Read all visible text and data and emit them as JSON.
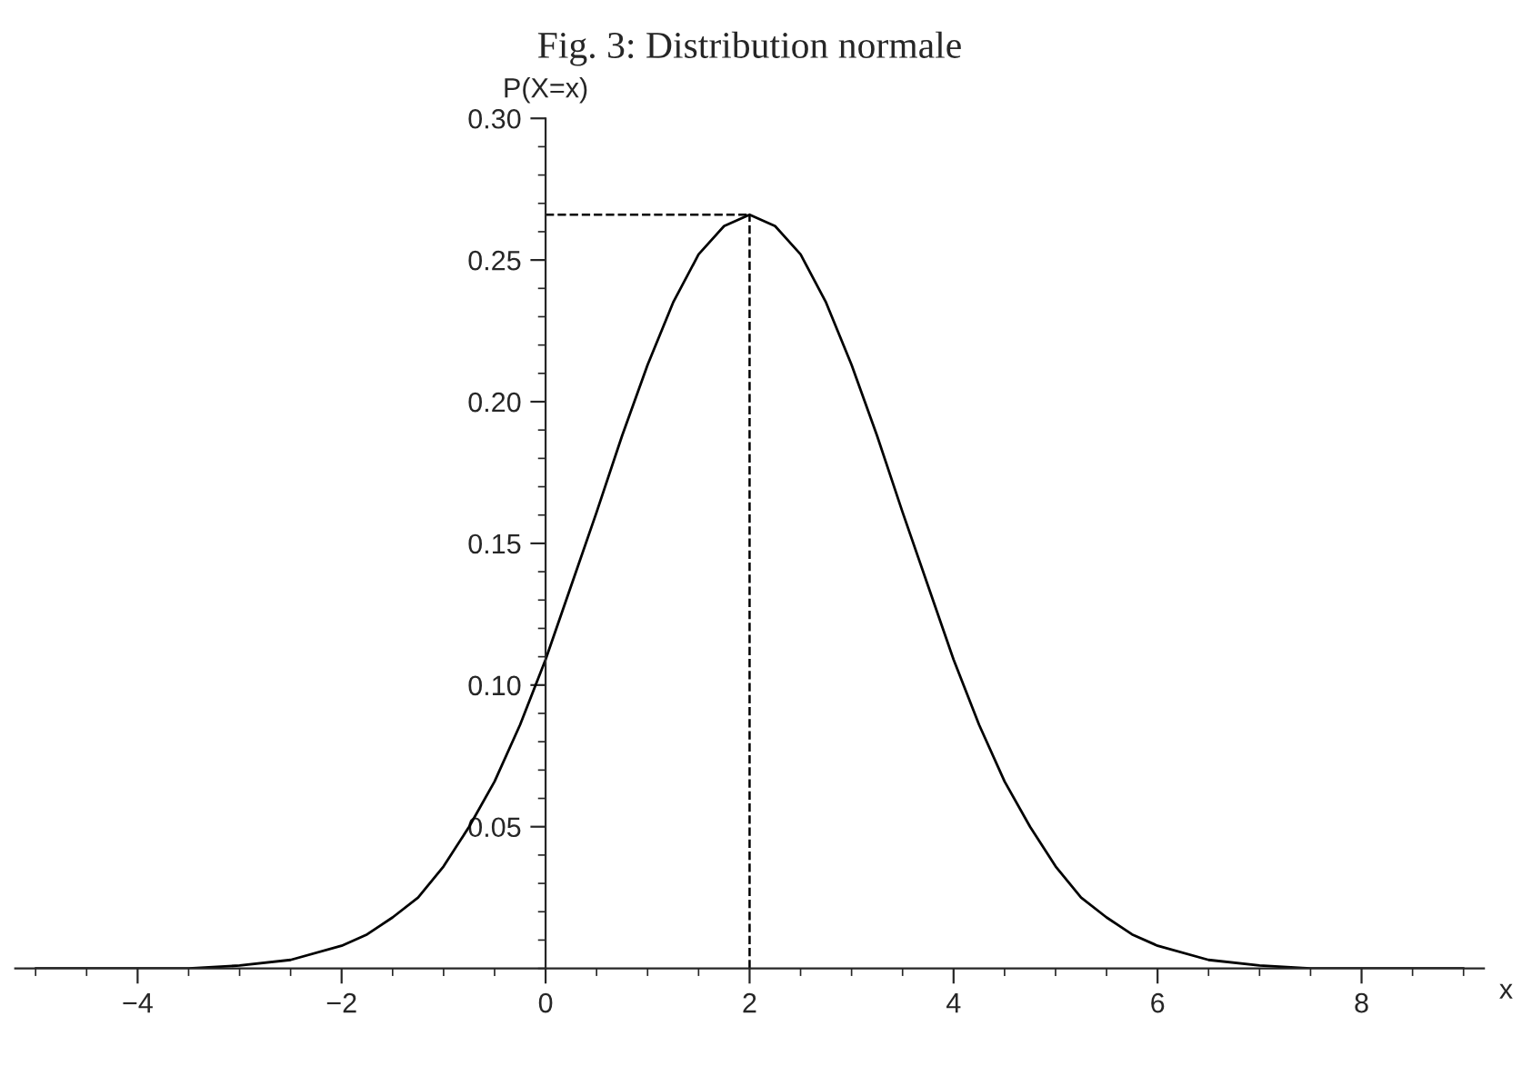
{
  "chart_data": {
    "type": "line",
    "title": "Fig. 3: Distribution normale",
    "xlabel": "x",
    "ylabel": "P(X=x)",
    "x": [
      -5,
      -4.5,
      -4,
      -3.5,
      -3,
      -2.5,
      -2,
      -1.75,
      -1.5,
      -1.25,
      -1,
      -0.75,
      -0.5,
      -0.25,
      0,
      0.25,
      0.5,
      0.75,
      1,
      1.25,
      1.5,
      1.75,
      2,
      2.25,
      2.5,
      2.75,
      3,
      3.25,
      3.5,
      3.75,
      4,
      4.25,
      4.5,
      4.75,
      5,
      5.25,
      5.5,
      5.75,
      6,
      6.5,
      7,
      7.5,
      8,
      8.5,
      9
    ],
    "series": [
      {
        "color": "#000000",
        "values": [
          0.0,
          0.0,
          0.0,
          0.0,
          0.001,
          0.003,
          0.008,
          0.012,
          0.018,
          0.025,
          0.036,
          0.05,
          0.066,
          0.086,
          0.109,
          0.135,
          0.161,
          0.188,
          0.213,
          0.235,
          0.252,
          0.262,
          0.266,
          0.262,
          0.252,
          0.235,
          0.213,
          0.188,
          0.161,
          0.135,
          0.109,
          0.086,
          0.066,
          0.05,
          0.036,
          0.025,
          0.018,
          0.012,
          0.008,
          0.003,
          0.001,
          0.0,
          0.0,
          0.0,
          0.0
        ]
      }
    ],
    "xlim": [
      -5.2,
      9.2
    ],
    "ylim": [
      0,
      0.3
    ],
    "xticks": [
      -4,
      -2,
      0,
      2,
      4,
      6,
      8
    ],
    "yticks": [
      0.05,
      {
        "value": 0.1,
        "label": "0.10"
      },
      0.15,
      {
        "value": 0.2,
        "label": "0.20"
      },
      0.25,
      {
        "value": 0.3,
        "label": "0.30"
      }
    ],
    "ref_lines": [
      {
        "axis": "x",
        "value": 2,
        "line_style": "dashed"
      },
      {
        "axis": "y",
        "value": 0.266,
        "line_style": "dashed"
      }
    ],
    "grid": false,
    "legend": false,
    "marker": "none",
    "line_style": "solid"
  }
}
